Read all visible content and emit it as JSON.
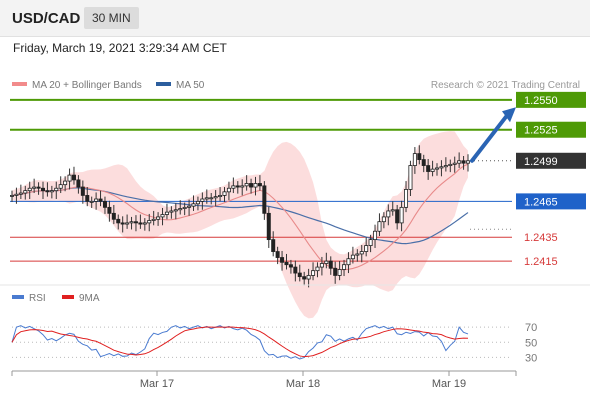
{
  "header": {
    "symbol": "USD/CAD",
    "timeframe": "30 MIN"
  },
  "datetime": "Friday, March 19, 2021 3:29:34 AM CET",
  "legend": {
    "items": [
      {
        "label": "MA 20 + Bollinger Bands",
        "color": "#f28b8b"
      },
      {
        "label": "MA 50",
        "color": "#2c5e9e"
      }
    ],
    "credit": "Research © 2021 Trading Central"
  },
  "rsi_legend": {
    "items": [
      {
        "label": "RSI",
        "color": "#4a7bd0"
      },
      {
        "label": "9MA",
        "color": "#e02020"
      }
    ]
  },
  "colors": {
    "resistance": "#4e9a06",
    "support_strong": "#1f62c9",
    "support": "#d63a3a",
    "current": "#333333",
    "bollinger": "#fbd2d2",
    "arrow": "#2a64b4"
  },
  "chart_data": {
    "type": "candlestick",
    "symbol": "USD/CAD",
    "interval": "30 MIN",
    "xaxis_labels": [
      "Mar 17",
      "Mar 18",
      "Mar 19"
    ],
    "ylim": [
      1.2395,
      1.2575
    ],
    "levels": [
      {
        "value": 1.255,
        "label": "1.2550",
        "kind": "resistance"
      },
      {
        "value": 1.2525,
        "label": "1.2525",
        "kind": "resistance"
      },
      {
        "value": 1.2499,
        "label": "1.2499",
        "kind": "current"
      },
      {
        "value": 1.2465,
        "label": "1.2465",
        "kind": "support_strong"
      },
      {
        "value": 1.2435,
        "label": "1.2435",
        "kind": "support"
      },
      {
        "value": 1.2415,
        "label": "1.2415",
        "kind": "support"
      }
    ],
    "closes": [
      1.247,
      1.2471,
      1.2472,
      1.2474,
      1.2476,
      1.2477,
      1.2476,
      1.2474,
      1.2473,
      1.2474,
      1.2476,
      1.2479,
      1.2482,
      1.2487,
      1.2483,
      1.2477,
      1.247,
      1.2465,
      1.2465,
      1.2467,
      1.2465,
      1.246,
      1.2455,
      1.245,
      1.2447,
      1.2446,
      1.2447,
      1.2448,
      1.2447,
      1.2446,
      1.2447,
      1.2449,
      1.245,
      1.2452,
      1.2454,
      1.2456,
      1.2457,
      1.2458,
      1.2459,
      1.246,
      1.2461,
      1.2463,
      1.2465,
      1.2467,
      1.2468,
      1.2468,
      1.2469,
      1.247,
      1.2473,
      1.2476,
      1.2478,
      1.2477,
      1.2478,
      1.248,
      1.2477,
      1.248,
      1.2478,
      1.2455,
      1.2433,
      1.2423,
      1.2418,
      1.2414,
      1.2412,
      1.241,
      1.2405,
      1.2402,
      1.24,
      1.2403,
      1.2407,
      1.241,
      1.2413,
      1.2415,
      1.2409,
      1.2403,
      1.2408,
      1.2412,
      1.2417,
      1.242,
      1.2421,
      1.2423,
      1.2428,
      1.2433,
      1.244,
      1.2448,
      1.2452,
      1.2457,
      1.2458,
      1.2447,
      1.246,
      1.2475,
      1.2495,
      1.2505,
      1.25,
      1.2495,
      1.249,
      1.2492,
      1.2493,
      1.2494,
      1.2495,
      1.2496,
      1.2497,
      1.2499,
      1.2497,
      1.2499
    ],
    "annotation": "projected move toward 1.2550",
    "rsi": {
      "levels": [
        70,
        50,
        30
      ],
      "series": [
        "RSI",
        "9MA"
      ]
    }
  }
}
